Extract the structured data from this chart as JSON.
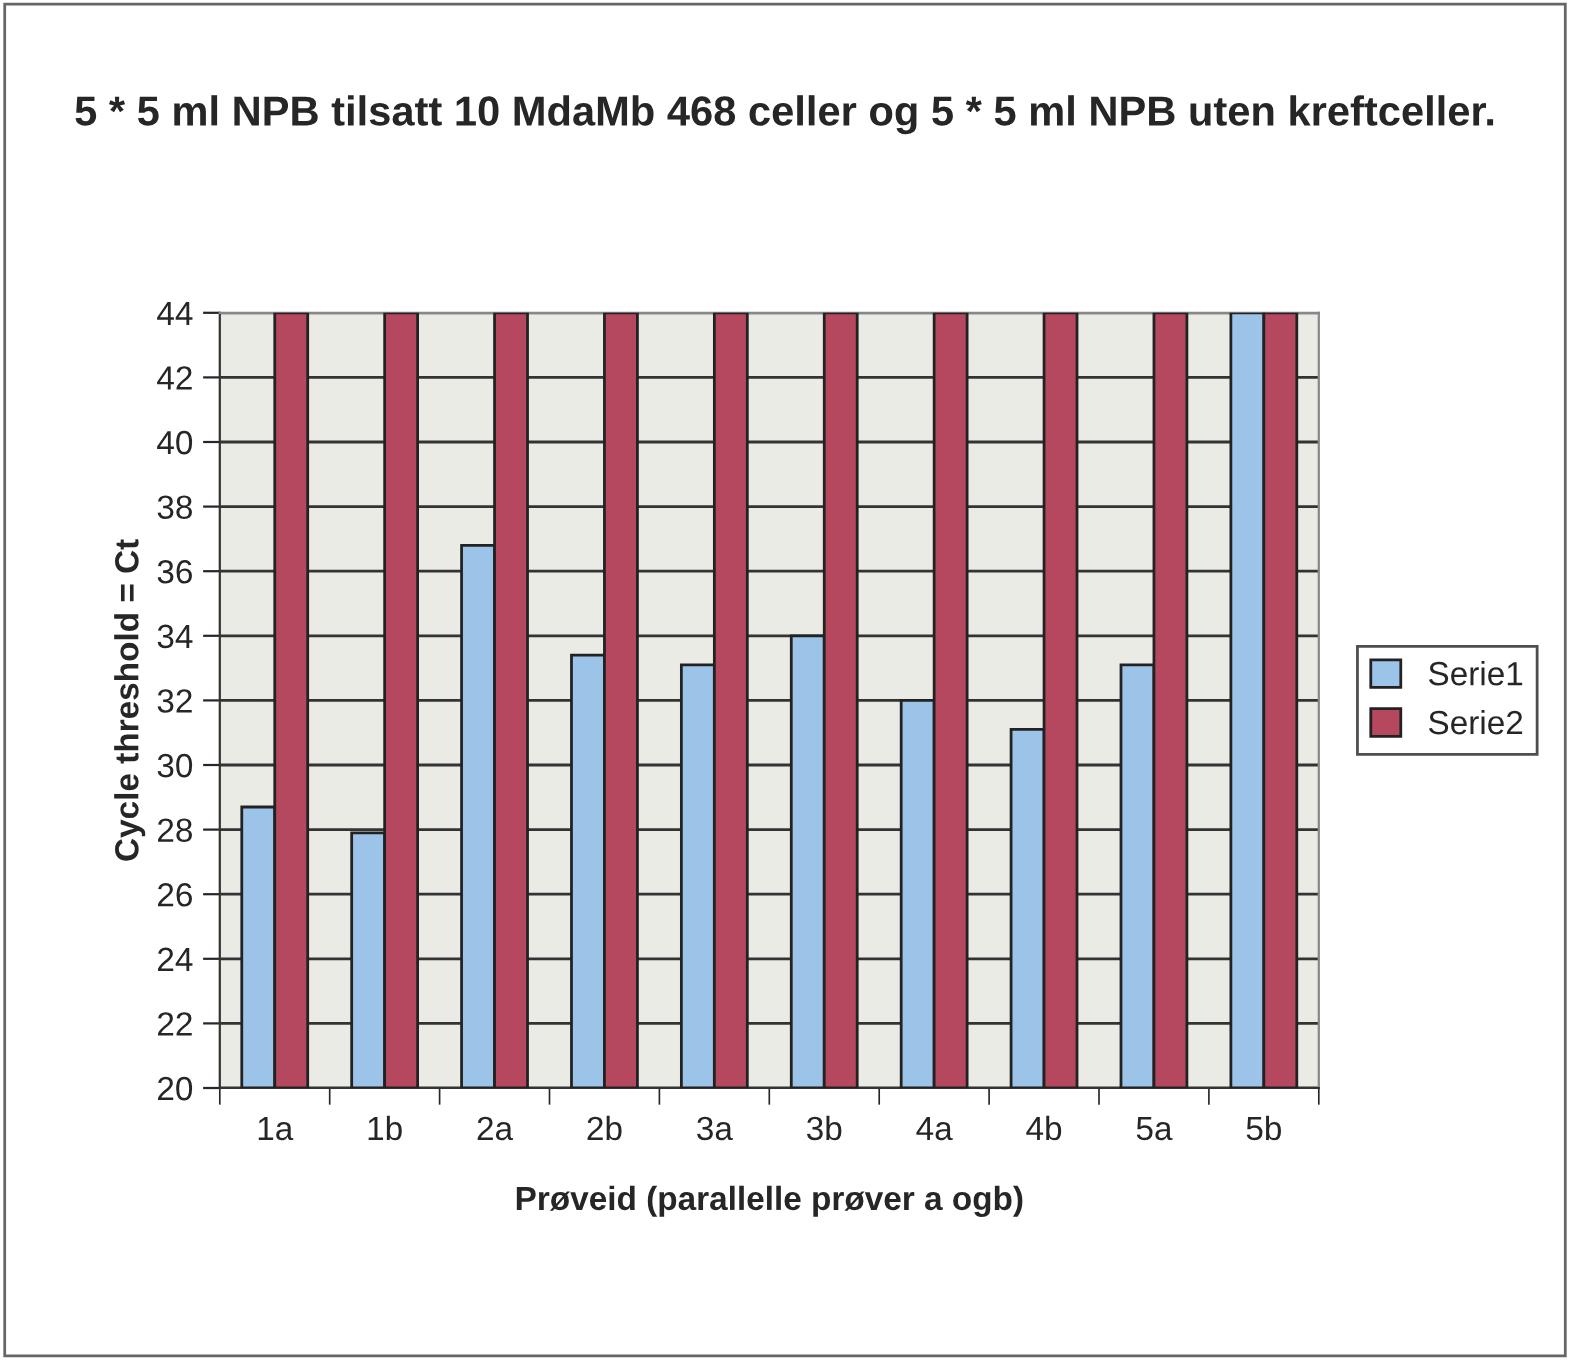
{
  "chart_data": {
    "type": "bar",
    "title": "5 * 5 ml NPB tilsatt 10 MdaMb 468 celler og 5 * 5 ml NPB uten kreftceller.",
    "xlabel": "Prøveid (parallelle prøver a ogb)",
    "ylabel": "Cycle threshold = Ct",
    "categories": [
      "1a",
      "1b",
      "2a",
      "2b",
      "3a",
      "3b",
      "4a",
      "4b",
      "5a",
      "5b"
    ],
    "series": [
      {
        "name": "Serie1",
        "color": "#9cc3e8",
        "values": [
          28.7,
          27.9,
          36.8,
          33.4,
          33.1,
          34,
          32,
          31.1,
          33.1,
          44
        ]
      },
      {
        "name": "Serie2",
        "color": "#b5485f",
        "values": [
          44,
          44,
          44,
          44,
          44,
          44,
          44,
          44,
          44,
          44
        ]
      }
    ],
    "ylim": [
      20,
      44
    ],
    "yticks": [
      20,
      22,
      24,
      26,
      28,
      30,
      32,
      34,
      36,
      38,
      40,
      42,
      44
    ],
    "grid": "y",
    "legend": "right"
  }
}
